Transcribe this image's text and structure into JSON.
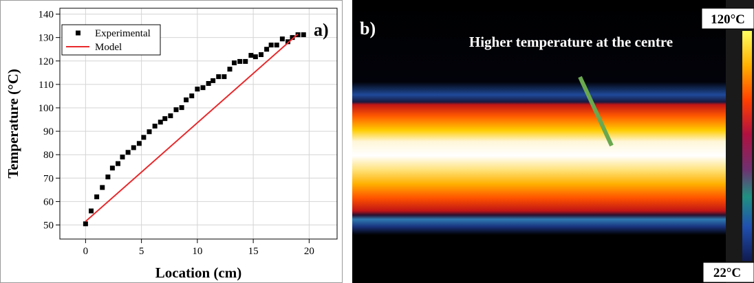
{
  "chart_data": {
    "type": "scatter",
    "annotation": "a)",
    "x_label": "Location (cm)",
    "y_label": "Temperature (°C)",
    "xlim": [
      -2.3,
      22.5
    ],
    "xticks": [
      0,
      5,
      10,
      15,
      20
    ],
    "ylim": [
      44,
      142.5
    ],
    "yticks": [
      50,
      60,
      70,
      80,
      90,
      100,
      110,
      120,
      130,
      140
    ],
    "grid": true,
    "legend": "upper left",
    "series": [
      {
        "name": "Experimental",
        "mode": "markers",
        "color": "#000000",
        "x": [
          0,
          0.5,
          1,
          1.5,
          2,
          2.4,
          2.9,
          3.3,
          3.8,
          4.3,
          4.8,
          5.2,
          5.7,
          6.2,
          6.7,
          7.1,
          7.6,
          8.1,
          8.6,
          9,
          9.5,
          10,
          10.5,
          11,
          11.4,
          11.9,
          12.4,
          12.9,
          13.3,
          13.8,
          14.3,
          14.8,
          15.2,
          15.7,
          16.2,
          16.6,
          17.1,
          17.6,
          18.1,
          18.5,
          19,
          19.5
        ],
        "values": [
          50.5,
          56,
          62,
          66,
          70.5,
          74.3,
          76.2,
          79,
          81,
          83,
          84.8,
          87.4,
          89.8,
          92.2,
          93.9,
          95.4,
          96.6,
          99.2,
          100.1,
          103.4,
          105.1,
          108,
          108.6,
          110.4,
          111.6,
          113.3,
          113.3,
          116.5,
          119.2,
          119.8,
          119.8,
          122.4,
          121.8,
          122.7,
          125,
          126.8,
          126.8,
          129.4,
          128.2,
          130,
          131.2,
          131.2
        ]
      },
      {
        "name": "Model",
        "mode": "line",
        "color": "#e8282b",
        "x": [
          0,
          19
        ],
        "values": [
          51.5,
          131.5
        ]
      }
    ]
  },
  "panel_b": {
    "label": "b)",
    "annotation": "Higher temperature at the centre",
    "scale_max": "120°C",
    "scale_min": "22°C"
  }
}
